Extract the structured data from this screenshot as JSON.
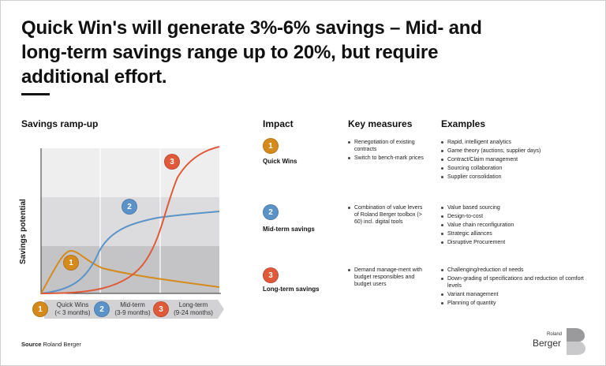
{
  "headline": {
    "line1": "Quick Win's will generate 3%-6% savings – Mid- and",
    "line2": "long-term savings range up to 20%, but require",
    "line3": "additional effort."
  },
  "chart": {
    "title": "Savings ramp-up",
    "ylabel": "Savings potential",
    "phases": [
      {
        "number": "1",
        "name": "Quick Wins",
        "duration": "(< 3 months)"
      },
      {
        "number": "2",
        "name": "Mid-term",
        "duration": "(3-9 months)"
      },
      {
        "number": "3",
        "name": "Long-term",
        "duration": "(9-24 months)"
      }
    ]
  },
  "columns": {
    "impact": "Impact",
    "key_measures": "Key measures",
    "examples": "Examples"
  },
  "rows": [
    {
      "number": "1",
      "label": "Quick Wins",
      "measures": [
        "Renegotiation of existing contracts",
        "Switch to bench-mark prices"
      ],
      "examples": [
        "Rapid, intelligent analytics",
        "Game theory (auctions, supplier days)",
        "Contract/Claim management",
        "Sourcing collaboration",
        "Supplier consolidation"
      ]
    },
    {
      "number": "2",
      "label": "Mid-term savings",
      "measures": [
        "Combination of value levers of Roland Berger toolbox (> 60) incl. digital tools"
      ],
      "examples": [
        "Value based sourcing",
        "Design-to-cost",
        "Value chain reconfiguration",
        "Strategic alliances",
        "Disruptive Procurement"
      ]
    },
    {
      "number": "3",
      "label": "Long-term savings",
      "measures": [
        "Demand manage-ment with budget responsibles and budget users"
      ],
      "examples": [
        "Challenging/reduction of needs",
        "Down-grading of specifications and reduction of comfort levels",
        "Variant management",
        "Planning of quantity"
      ]
    }
  ],
  "colors": {
    "quick": "#d58a1c",
    "mid": "#5b93c9",
    "long": "#e05a3a",
    "band_light": "#eeeeef",
    "band_mid": "#dcdcde",
    "band_dark": "#c4c4c7",
    "arrow": "#d2d2d4"
  },
  "source": {
    "prefix": "Source",
    "text": "Roland Berger"
  },
  "logo": {
    "small": "Roland",
    "word": "Berger",
    "letter": "B"
  }
}
